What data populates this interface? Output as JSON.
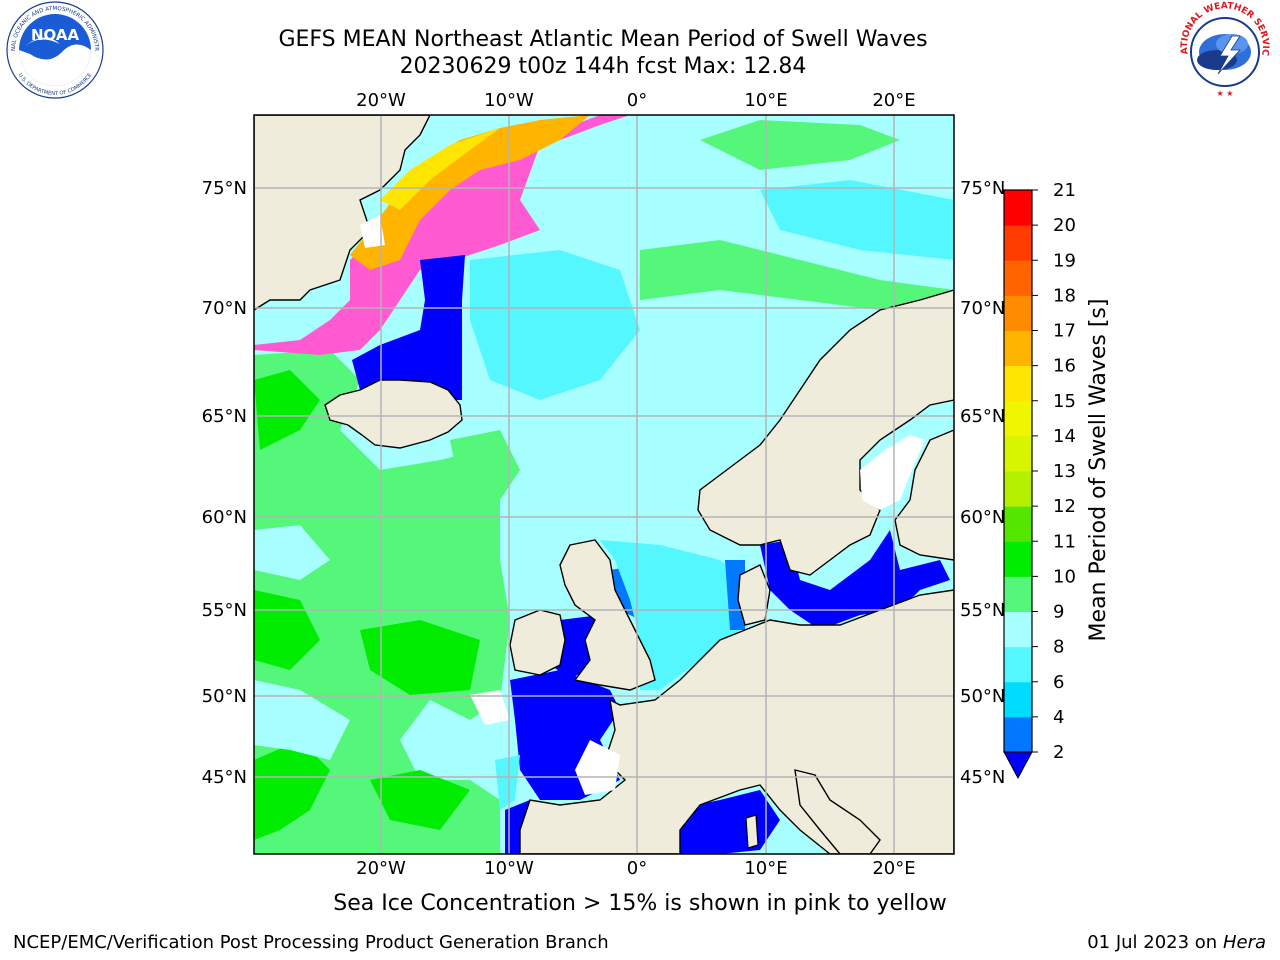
{
  "title": {
    "line1": "GEFS MEAN Northeast Atlantic Mean Period of Swell Waves",
    "line2": "20230629 t00z 144h fcst   Max: 12.84"
  },
  "logos": {
    "noaa": {
      "text": "NOAA",
      "ring_text": "NATIONAL OCEANIC AND ATMOSPHERIC ADMINISTRATION",
      "bottom_text": "U.S. DEPARTMENT OF COMMERCE"
    },
    "nws": {
      "ring_text": "NATIONAL WEATHER SERVICE"
    }
  },
  "map": {
    "longitude_labels": [
      "20°W",
      "10°W",
      "0°",
      "10°E",
      "20°E"
    ],
    "latitude_labels": [
      "75°N",
      "70°N",
      "65°N",
      "60°N",
      "55°N",
      "50°N",
      "45°N"
    ],
    "colors": {
      "land": "#efecdc",
      "coastline": "#000000",
      "grid": "#b4b4b4"
    }
  },
  "colorbar": {
    "label": "Mean Period of Swell Waves [s]",
    "ticks": [
      "2",
      "4",
      "6",
      "8",
      "9",
      "10",
      "11",
      "12",
      "13",
      "14",
      "15",
      "16",
      "17",
      "18",
      "19",
      "20",
      "21"
    ],
    "colors": [
      "#0000ff",
      "#0078ff",
      "#00dcff",
      "#55f7ff",
      "#a8ffff",
      "#55f77a",
      "#00ec00",
      "#55e600",
      "#b4f000",
      "#d8f500",
      "#f0f500",
      "#ffe600",
      "#ffb400",
      "#ff8c00",
      "#ff6400",
      "#ff3c00",
      "#ff0000"
    ],
    "extend_color": "#0000ff"
  },
  "caption": "Sea Ice Concentration > 15% is shown in pink to yellow",
  "footer": {
    "left": "NCEP/EMC/Verification Post Processing Product Generation Branch",
    "right_date": "01 Jul 2023 on ",
    "right_host": "Hera"
  }
}
